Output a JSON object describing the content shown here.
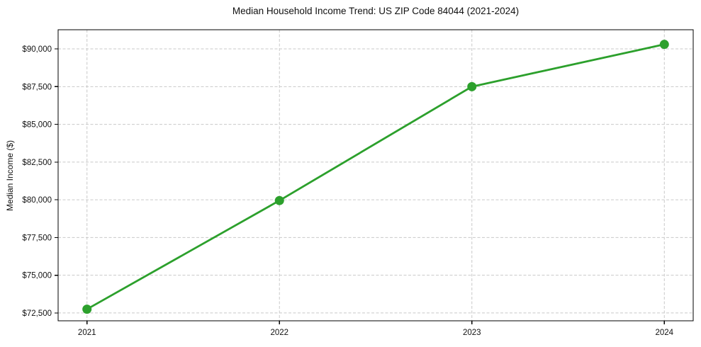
{
  "chart_data": {
    "type": "line",
    "title": "Median Household Income Trend: US ZIP Code 84044 (2021-2024)",
    "xlabel": "",
    "ylabel": "Median Income ($)",
    "x": [
      2021,
      2022,
      2023,
      2024
    ],
    "xtick_labels": [
      "2021",
      "2022",
      "2023",
      "2024"
    ],
    "series": [
      {
        "name": "Median Household Income",
        "values": [
          72750,
          79950,
          87500,
          90300
        ]
      }
    ],
    "yticks": [
      72500,
      75000,
      77500,
      80000,
      82500,
      85000,
      87500,
      90000
    ],
    "ytick_labels": [
      "$72,500",
      "$75,000",
      "$77,500",
      "$80,000",
      "$82,500",
      "$85,000",
      "$87,500",
      "$90,000"
    ],
    "xlim": [
      2020.85,
      2024.15
    ],
    "ylim": [
      71980,
      91270
    ],
    "grid": true,
    "legend_position": "none",
    "colors": {
      "line": "#2ca02c",
      "marker": "#2ca02c",
      "grid": "#c9c9c9",
      "spine": "#000000",
      "background": "#ffffff",
      "text": "#111111"
    }
  }
}
